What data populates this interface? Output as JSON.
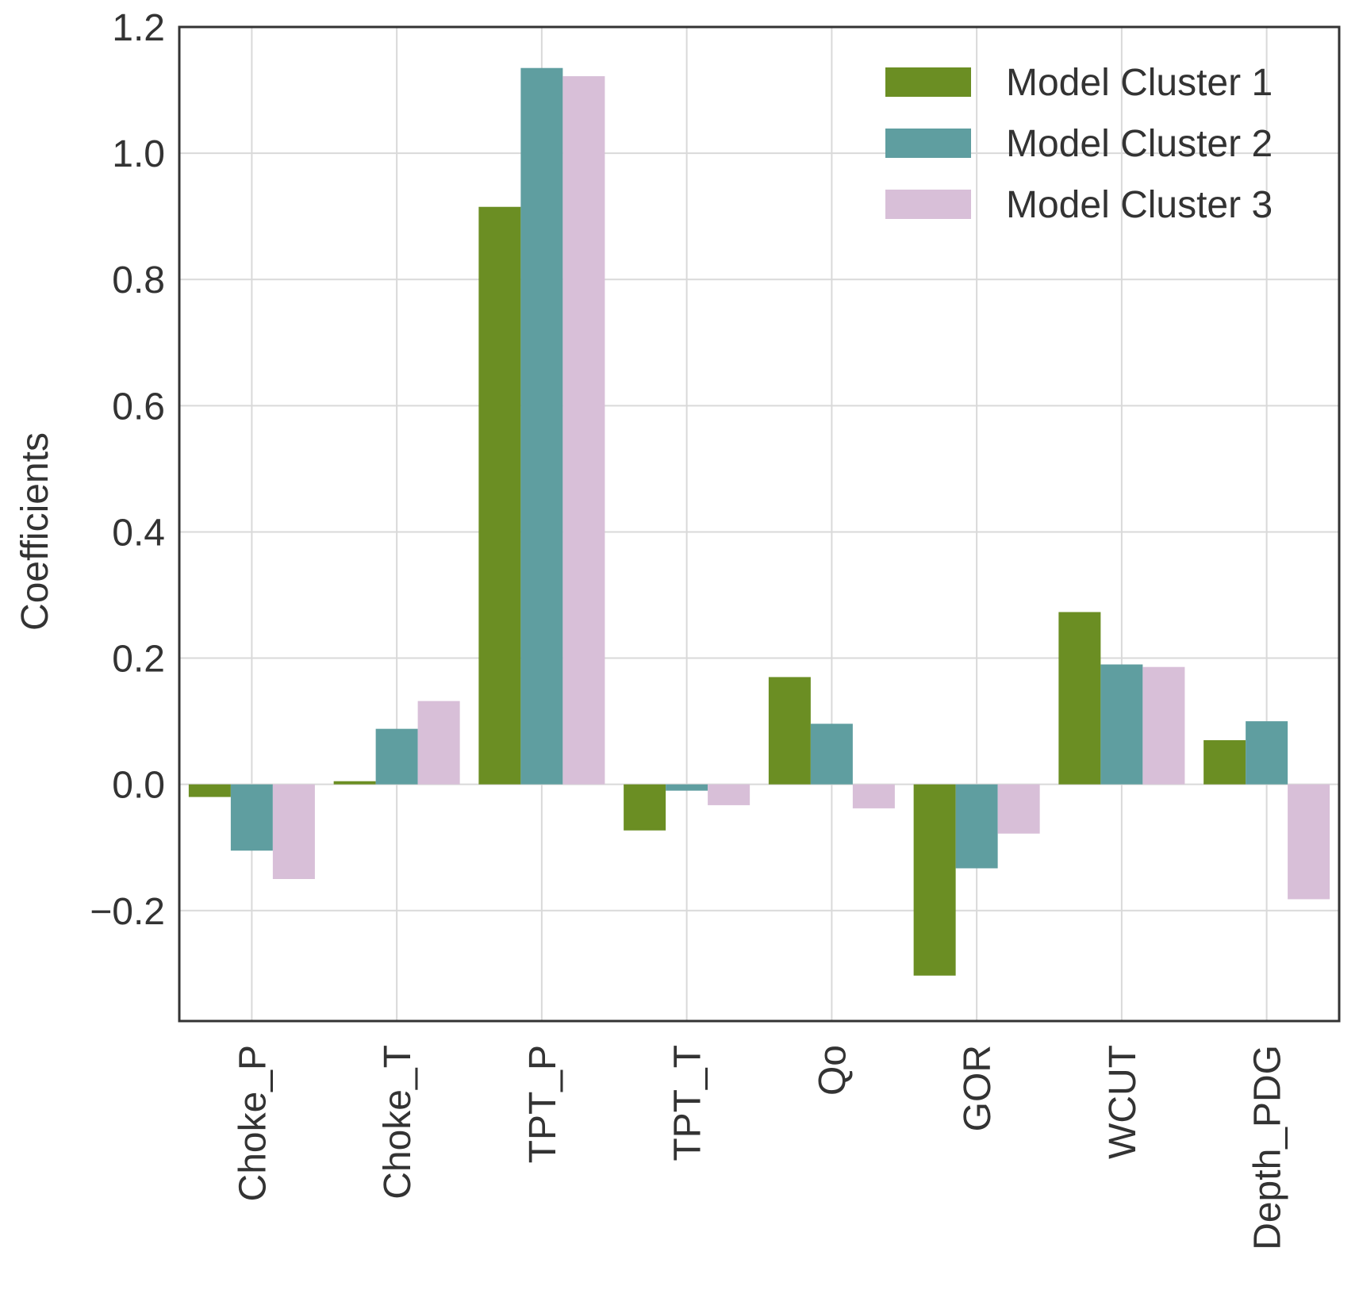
{
  "chart_data": {
    "type": "bar",
    "title": "",
    "xlabel": "",
    "ylabel": "Coefficients",
    "ylim": [
      -0.375,
      1.2
    ],
    "yticks": [
      -0.2,
      0.0,
      0.2,
      0.4,
      0.6,
      0.8,
      1.0,
      1.2
    ],
    "ytick_labels": [
      "−0.2",
      "0.0",
      "0.2",
      "0.4",
      "0.6",
      "0.8",
      "1.0",
      "1.2"
    ],
    "grid": true,
    "legend_position": "top-right",
    "categories": [
      "Choke_P",
      "Choke_T",
      "TPT_P",
      "TPT_T",
      "Qo",
      "GOR",
      "WCUT",
      "Depth_PDG"
    ],
    "series": [
      {
        "name": "Model Cluster 1",
        "color": "#6b8e23",
        "values": [
          -0.02,
          0.005,
          0.915,
          -0.073,
          0.17,
          -0.303,
          0.273,
          0.07
        ]
      },
      {
        "name": "Model Cluster 2",
        "color": "#5f9ea0",
        "values": [
          -0.105,
          0.088,
          1.135,
          -0.01,
          0.096,
          -0.133,
          0.19,
          0.1
        ]
      },
      {
        "name": "Model Cluster 3",
        "color": "#d8bfd8",
        "values": [
          -0.15,
          0.132,
          1.122,
          -0.033,
          -0.038,
          -0.078,
          0.186,
          -0.182
        ]
      }
    ]
  }
}
